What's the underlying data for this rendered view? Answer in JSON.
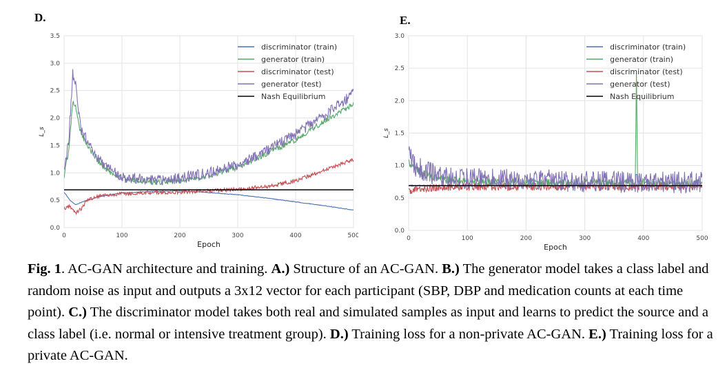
{
  "chart_data": [
    {
      "panel": "D.",
      "type": "line",
      "xlabel": "Epoch",
      "ylabel": "L_s",
      "xlim": [
        0,
        500
      ],
      "ylim": [
        0.0,
        3.5
      ],
      "xticks": [
        "0",
        "100",
        "200",
        "300",
        "400",
        "500"
      ],
      "yticks": [
        "0.0",
        "0.5",
        "1.0",
        "1.5",
        "2.0",
        "2.5",
        "3.0",
        "3.5"
      ],
      "grid": true,
      "legend": "top-right",
      "series": [
        {
          "name": "discriminator (train)",
          "color": "#4c72b0",
          "noise": 0.005,
          "x": [
            0,
            10,
            20,
            40,
            60,
            80,
            100,
            150,
            200,
            250,
            300,
            350,
            400,
            450,
            500
          ],
          "y": [
            0.65,
            0.5,
            0.42,
            0.5,
            0.56,
            0.6,
            0.63,
            0.66,
            0.67,
            0.64,
            0.6,
            0.54,
            0.47,
            0.4,
            0.32
          ]
        },
        {
          "name": "generator (train)",
          "color": "#55a868",
          "noise": 0.05,
          "x": [
            0,
            8,
            15,
            20,
            25,
            30,
            40,
            50,
            60,
            80,
            100,
            150,
            200,
            250,
            300,
            350,
            400,
            450,
            500
          ],
          "y": [
            0.95,
            1.4,
            2.3,
            2.2,
            1.9,
            1.7,
            1.5,
            1.35,
            1.2,
            1.0,
            0.9,
            0.83,
            0.85,
            0.95,
            1.1,
            1.35,
            1.6,
            1.95,
            2.25
          ]
        },
        {
          "name": "discriminator (test)",
          "color": "#c44e52",
          "noise": 0.035,
          "x": [
            0,
            10,
            20,
            30,
            40,
            50,
            60,
            80,
            100,
            150,
            200,
            250,
            300,
            350,
            400,
            450,
            500
          ],
          "y": [
            0.35,
            0.4,
            0.27,
            0.35,
            0.5,
            0.55,
            0.57,
            0.6,
            0.62,
            0.64,
            0.65,
            0.67,
            0.7,
            0.75,
            0.85,
            1.05,
            1.25
          ]
        },
        {
          "name": "generator (test)",
          "color": "#8172b2",
          "noise": 0.1,
          "x": [
            0,
            8,
            15,
            20,
            25,
            30,
            40,
            50,
            60,
            80,
            100,
            150,
            200,
            250,
            300,
            350,
            400,
            450,
            500
          ],
          "y": [
            1.0,
            1.6,
            2.8,
            2.6,
            2.1,
            1.8,
            1.6,
            1.4,
            1.25,
            1.05,
            0.92,
            0.86,
            0.9,
            1.0,
            1.15,
            1.4,
            1.7,
            2.05,
            2.45
          ]
        },
        {
          "name": "Nash Equilibrium",
          "color": "#000000",
          "noise": 0,
          "x": [
            0,
            500
          ],
          "y": [
            0.69,
            0.69
          ]
        }
      ]
    },
    {
      "panel": "E.",
      "type": "line",
      "xlabel": "Epoch",
      "ylabel": "L_s",
      "xlim": [
        0,
        500
      ],
      "ylim": [
        0.0,
        3.0
      ],
      "xticks": [
        "0",
        "100",
        "200",
        "300",
        "400",
        "500"
      ],
      "yticks": [
        "0.0",
        "0.5",
        "1.0",
        "1.5",
        "2.0",
        "2.5",
        "3.0"
      ],
      "grid": true,
      "legend": "top-right",
      "series": [
        {
          "name": "discriminator (train)",
          "color": "#4c72b0",
          "noise": 0.01,
          "x": [
            0,
            500
          ],
          "y": [
            0.69,
            0.69
          ]
        },
        {
          "name": "generator (train)",
          "color": "#55a868",
          "noise": 0.06,
          "x": [
            0,
            10,
            30,
            60,
            100,
            200,
            300,
            386,
            388,
            390,
            400,
            500
          ],
          "y": [
            1.05,
            0.95,
            0.85,
            0.78,
            0.75,
            0.74,
            0.74,
            0.74,
            2.45,
            0.74,
            0.74,
            0.73
          ]
        },
        {
          "name": "discriminator (test)",
          "color": "#c44e52",
          "noise": 0.06,
          "x": [
            0,
            20,
            60,
            500
          ],
          "y": [
            0.6,
            0.65,
            0.67,
            0.68
          ]
        },
        {
          "name": "generator (test)",
          "color": "#8172b2",
          "noise": 0.17,
          "x": [
            0,
            10,
            30,
            60,
            100,
            200,
            300,
            400,
            500
          ],
          "y": [
            1.15,
            1.0,
            0.9,
            0.83,
            0.8,
            0.78,
            0.75,
            0.74,
            0.74
          ]
        },
        {
          "name": "Nash Equilibrium",
          "color": "#000000",
          "noise": 0,
          "x": [
            0,
            500
          ],
          "y": [
            0.69,
            0.69
          ]
        }
      ]
    }
  ],
  "caption": [
    {
      "text": "Fig. 1",
      "bold": true
    },
    {
      "text": ". AC-GAN architecture and training. ",
      "bold": false
    },
    {
      "text": "A.)",
      "bold": true
    },
    {
      "text": " Structure of an AC-GAN. ",
      "bold": false
    },
    {
      "text": "B.)",
      "bold": true
    },
    {
      "text": " The generator model takes a class label and random noise as input and outputs a 3x12 vector for each participant (SBP, DBP and medication counts at each time point). ",
      "bold": false
    },
    {
      "text": "C.)",
      "bold": true
    },
    {
      "text": " The discriminator model takes both real and simulated samples as input and learns to predict the source and a class label (i.e. normal or intensive treatment group). ",
      "bold": false
    },
    {
      "text": "D.)",
      "bold": true
    },
    {
      "text": " Training loss for a non-private AC-GAN. ",
      "bold": false
    },
    {
      "text": "E.)",
      "bold": true
    },
    {
      "text": " Training loss for a private AC-GAN.",
      "bold": false
    }
  ]
}
